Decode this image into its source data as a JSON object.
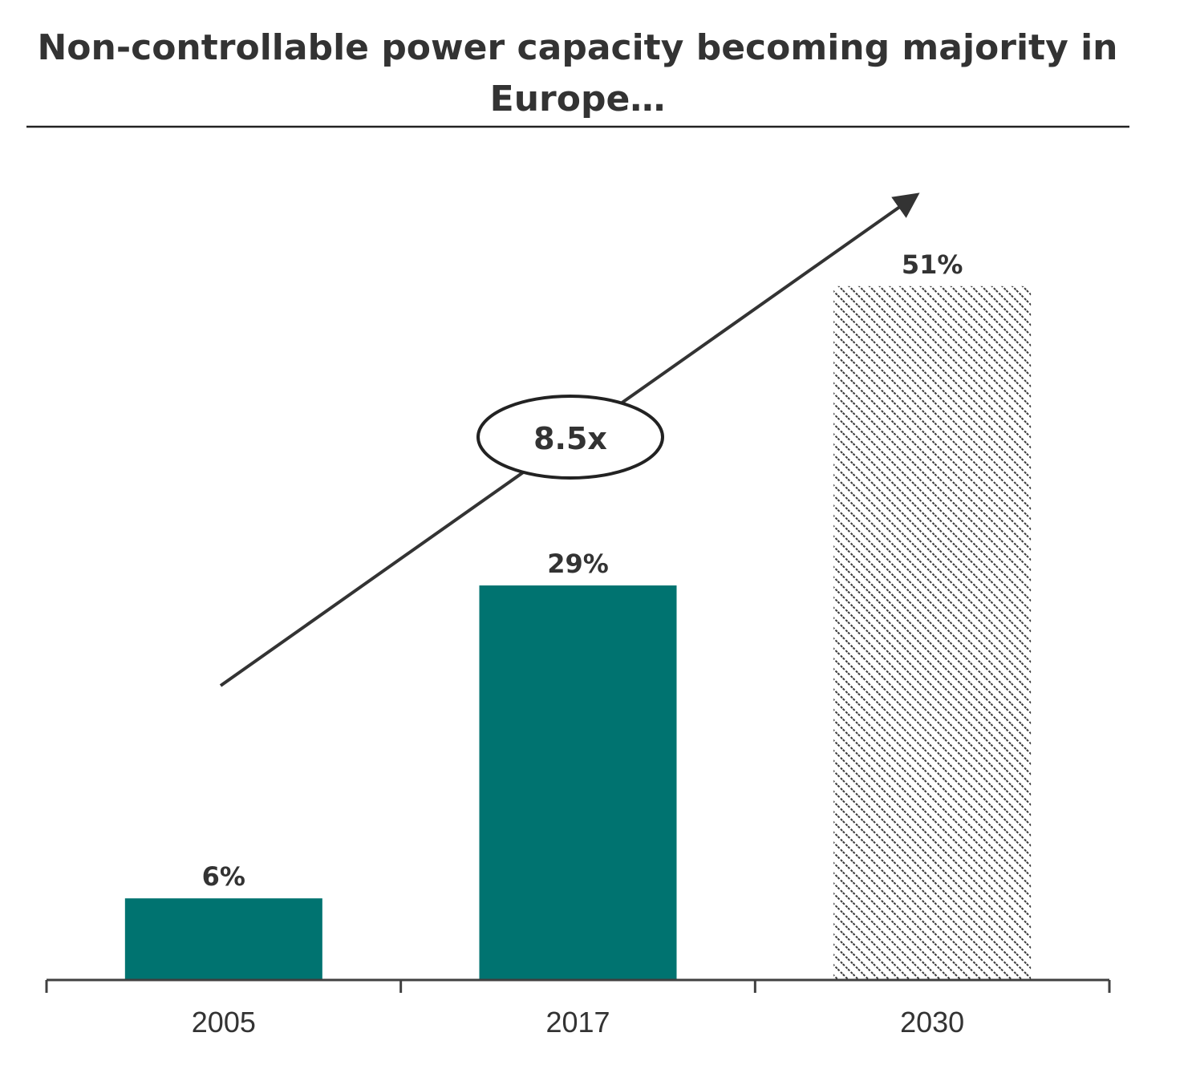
{
  "chart_data": {
    "type": "bar",
    "title_line1": "Non-controllable power capacity becoming majority in",
    "title_line2": "Europe…",
    "categories": [
      "2005",
      "2017",
      "2030"
    ],
    "values": [
      6,
      29,
      51
    ],
    "value_labels": [
      "6%",
      "29%",
      "51%"
    ],
    "value_unit": "%",
    "ylim": [
      0,
      56
    ],
    "grid": false,
    "legend": "none",
    "bar_styles": [
      "solid",
      "solid",
      "hatched"
    ],
    "annotation": "8.5x"
  },
  "colors": {
    "bar": "#007370",
    "hatch": "#3a3a3a",
    "text": "#333333",
    "axis": "#404040"
  }
}
